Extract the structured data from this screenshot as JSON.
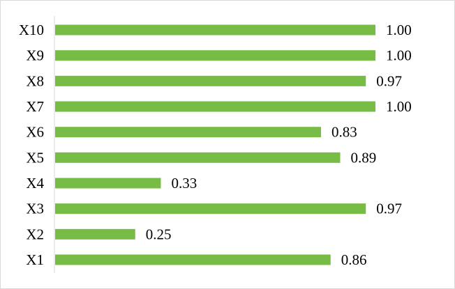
{
  "chart_data": {
    "type": "bar",
    "orientation": "horizontal",
    "categories": [
      "X1",
      "X2",
      "X3",
      "X4",
      "X5",
      "X6",
      "X7",
      "X8",
      "X9",
      "X10"
    ],
    "values": [
      0.86,
      0.25,
      0.97,
      0.33,
      0.89,
      0.83,
      1.0,
      0.97,
      1.0,
      1.0
    ],
    "data_labels": [
      "0.86",
      "0.25",
      "0.97",
      "0.33",
      "0.89",
      "0.83",
      "1.00",
      "0.97",
      "1.00",
      "1.00"
    ],
    "title": "",
    "xlabel": "",
    "ylabel": "",
    "xlim": [
      0,
      1.0
    ],
    "grid": false,
    "legend": "none",
    "colors": {
      "bar": "#77bc44",
      "axis": "#d9d9d9",
      "frame": "#d9d9d9",
      "text": "#000000"
    }
  }
}
